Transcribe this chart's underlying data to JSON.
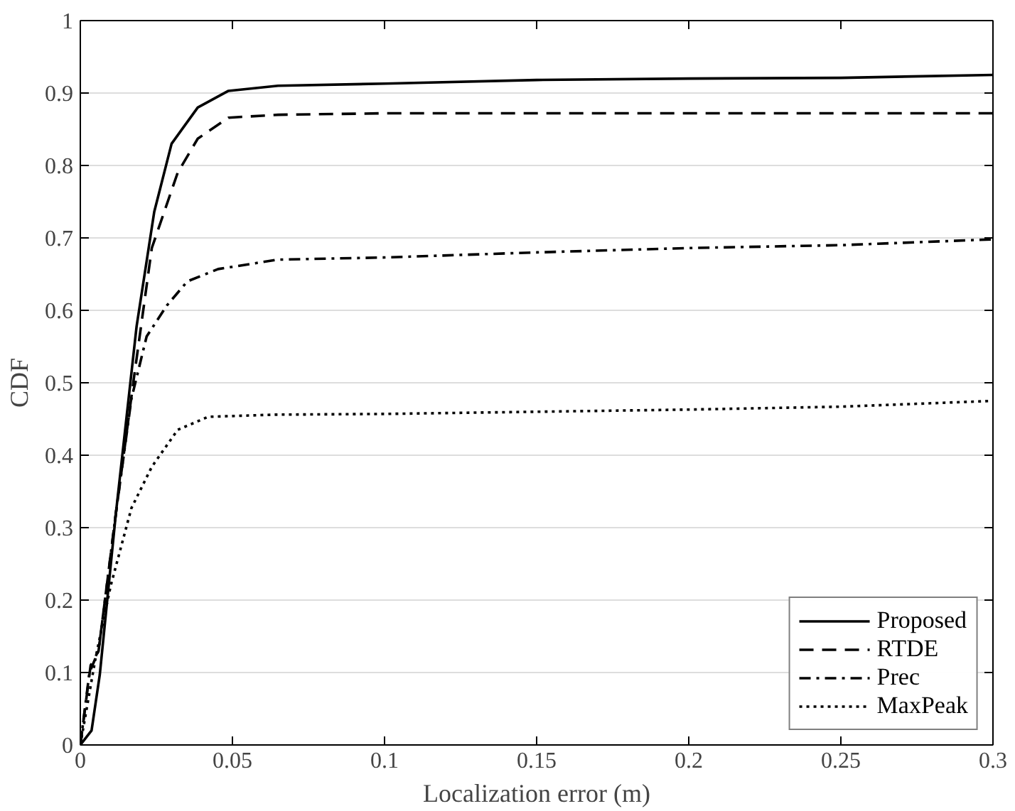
{
  "chart_data": {
    "type": "line",
    "xlabel": "Localization error (m)",
    "ylabel": "CDF",
    "xlim": [
      0,
      0.3
    ],
    "ylim": [
      0,
      1
    ],
    "xticks": [
      0,
      0.05,
      0.1,
      0.15,
      0.2,
      0.25,
      0.3
    ],
    "yticks": [
      0,
      0.1,
      0.2,
      0.3,
      0.4,
      0.5,
      0.6,
      0.7,
      0.8,
      0.9,
      1
    ],
    "grid": "y",
    "legend": "bottom right",
    "series": [
      {
        "name": "Proposed",
        "color": "#000000",
        "line_style": "solid",
        "x": [
          0,
          0.0037,
          0.0064,
          0.0117,
          0.0185,
          0.0243,
          0.03,
          0.0386,
          0.0487,
          0.065,
          0.1,
          0.15,
          0.2,
          0.25,
          0.3
        ],
        "values": [
          0,
          0.02,
          0.097,
          0.32,
          0.578,
          0.736,
          0.83,
          0.88,
          0.903,
          0.91,
          0.913,
          0.918,
          0.92,
          0.921,
          0.925
        ]
      },
      {
        "name": "RTDE",
        "color": "#000000",
        "line_style": "dashed",
        "x": [
          0,
          0.0034,
          0.006,
          0.0117,
          0.0176,
          0.0235,
          0.032,
          0.0386,
          0.0487,
          0.065,
          0.1,
          0.2,
          0.3
        ],
        "values": [
          0,
          0.11,
          0.13,
          0.32,
          0.506,
          0.686,
          0.79,
          0.837,
          0.866,
          0.87,
          0.872,
          0.872,
          0.872
        ]
      },
      {
        "name": "Prec",
        "color": "#000000",
        "line_style": "dashdot",
        "x": [
          0,
          0.003,
          0.006,
          0.0117,
          0.0168,
          0.0218,
          0.0285,
          0.0352,
          0.0453,
          0.065,
          0.1,
          0.15,
          0.2,
          0.25,
          0.3
        ],
        "values": [
          0,
          0.1,
          0.13,
          0.32,
          0.478,
          0.564,
          0.607,
          0.64,
          0.657,
          0.67,
          0.673,
          0.68,
          0.686,
          0.69,
          0.698
        ]
      },
      {
        "name": "MaxPeak",
        "color": "#000000",
        "line_style": "dotted",
        "x": [
          0,
          0.005,
          0.01,
          0.0168,
          0.0235,
          0.032,
          0.042,
          0.064,
          0.1,
          0.15,
          0.2,
          0.25,
          0.3
        ],
        "values": [
          0,
          0.12,
          0.22,
          0.327,
          0.384,
          0.435,
          0.453,
          0.456,
          0.457,
          0.46,
          0.463,
          0.467,
          0.475
        ]
      }
    ]
  }
}
